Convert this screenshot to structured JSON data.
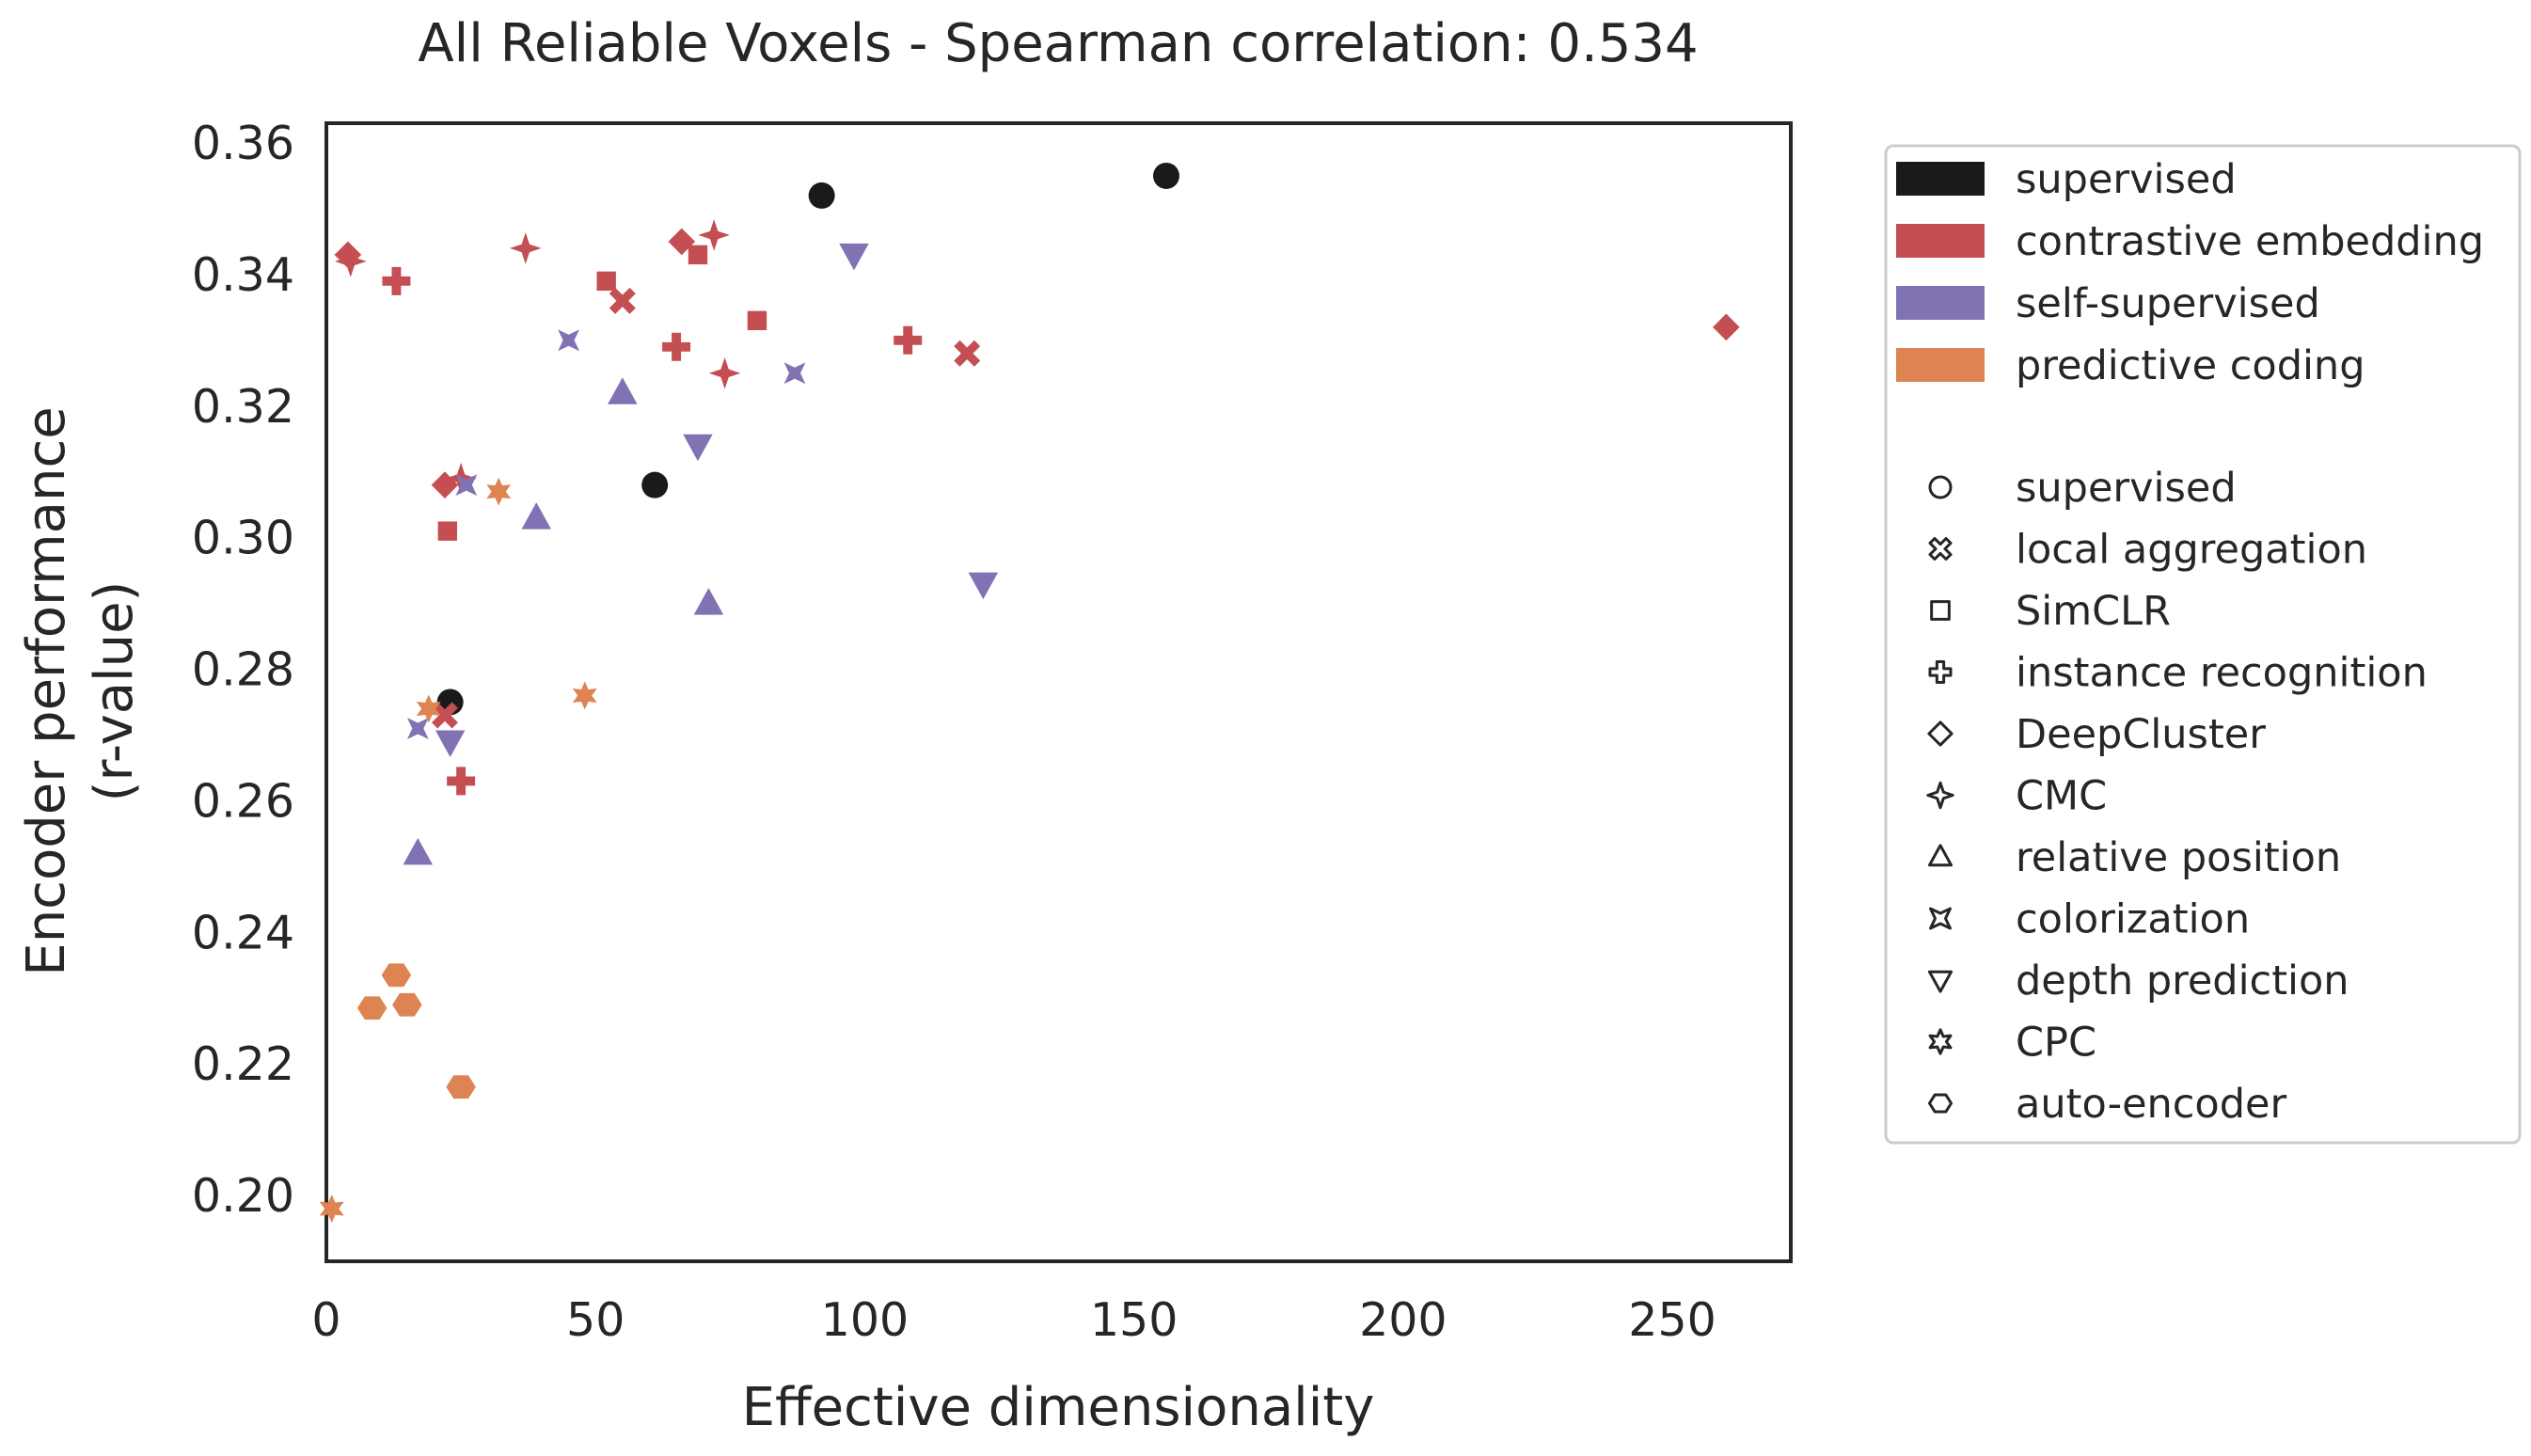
{
  "chart_data": {
    "type": "scatter",
    "title": "All Reliable Voxels - Spearman correlation: 0.534",
    "xlabel": "Effective dimensionality",
    "ylabel_lines": [
      "Encoder performance",
      "(r-value)"
    ],
    "xlim": [
      0,
      272
    ],
    "ylim": [
      0.19,
      0.363
    ],
    "xticks": [
      0,
      50,
      100,
      150,
      200,
      250
    ],
    "xtick_labels": [
      "0",
      "50",
      "100",
      "150",
      "200",
      "250"
    ],
    "yticks": [
      0.2,
      0.22,
      0.24,
      0.26,
      0.28,
      0.3,
      0.32,
      0.34,
      0.36
    ],
    "ytick_labels": [
      "0.20",
      "0.22",
      "0.24",
      "0.26",
      "0.28",
      "0.30",
      "0.32",
      "0.34",
      "0.36"
    ],
    "grid": false,
    "legend_position": "outside-right",
    "categories": [
      {
        "key": "supervised",
        "label": "supervised",
        "color": "#1a1a1a"
      },
      {
        "key": "contrastive",
        "label": "contrastive embedding",
        "color": "#c44e52"
      },
      {
        "key": "self_supervised",
        "label": "self-supervised",
        "color": "#8172b3"
      },
      {
        "key": "predictive",
        "label": "predictive coding",
        "color": "#dd8452"
      }
    ],
    "methods": [
      {
        "key": "supervised",
        "label": "supervised",
        "marker": "circle"
      },
      {
        "key": "local_aggregation",
        "label": "local aggregation",
        "marker": "x"
      },
      {
        "key": "simclr",
        "label": "SimCLR",
        "marker": "square"
      },
      {
        "key": "instance_recognition",
        "label": "instance recognition",
        "marker": "plus"
      },
      {
        "key": "deepcluster",
        "label": "DeepCluster",
        "marker": "diamond"
      },
      {
        "key": "cmc",
        "label": "CMC",
        "marker": "star4"
      },
      {
        "key": "relative_position",
        "label": "relative position",
        "marker": "triangle-up"
      },
      {
        "key": "colorization",
        "label": "colorization",
        "marker": "concave-square"
      },
      {
        "key": "depth_prediction",
        "label": "depth prediction",
        "marker": "triangle-down"
      },
      {
        "key": "cpc",
        "label": "CPC",
        "marker": "star6"
      },
      {
        "key": "auto_encoder",
        "label": "auto-encoder",
        "marker": "hexagon"
      }
    ],
    "points": [
      {
        "x": 156,
        "y": 0.355,
        "category": "supervised",
        "method": "supervised"
      },
      {
        "x": 92,
        "y": 0.352,
        "category": "supervised",
        "method": "supervised"
      },
      {
        "x": 61,
        "y": 0.308,
        "category": "supervised",
        "method": "supervised"
      },
      {
        "x": 23,
        "y": 0.275,
        "category": "supervised",
        "method": "supervised"
      },
      {
        "x": 4,
        "y": 0.343,
        "category": "contrastive",
        "method": "deepcluster"
      },
      {
        "x": 4.5,
        "y": 0.342,
        "category": "contrastive",
        "method": "cmc"
      },
      {
        "x": 13,
        "y": 0.339,
        "category": "contrastive",
        "method": "instance_recognition"
      },
      {
        "x": 37,
        "y": 0.344,
        "category": "contrastive",
        "method": "cmc"
      },
      {
        "x": 66,
        "y": 0.345,
        "category": "contrastive",
        "method": "deepcluster"
      },
      {
        "x": 72,
        "y": 0.346,
        "category": "contrastive",
        "method": "cmc"
      },
      {
        "x": 69,
        "y": 0.343,
        "category": "contrastive",
        "method": "simclr"
      },
      {
        "x": 52,
        "y": 0.339,
        "category": "contrastive",
        "method": "simclr"
      },
      {
        "x": 55,
        "y": 0.336,
        "category": "contrastive",
        "method": "local_aggregation"
      },
      {
        "x": 80,
        "y": 0.333,
        "category": "contrastive",
        "method": "simclr"
      },
      {
        "x": 65,
        "y": 0.329,
        "category": "contrastive",
        "method": "instance_recognition"
      },
      {
        "x": 74,
        "y": 0.325,
        "category": "contrastive",
        "method": "cmc"
      },
      {
        "x": 108,
        "y": 0.33,
        "category": "contrastive",
        "method": "instance_recognition"
      },
      {
        "x": 119,
        "y": 0.328,
        "category": "contrastive",
        "method": "local_aggregation"
      },
      {
        "x": 260,
        "y": 0.332,
        "category": "contrastive",
        "method": "deepcluster"
      },
      {
        "x": 22,
        "y": 0.308,
        "category": "contrastive",
        "method": "deepcluster"
      },
      {
        "x": 25,
        "y": 0.309,
        "category": "contrastive",
        "method": "cmc"
      },
      {
        "x": 22.5,
        "y": 0.301,
        "category": "contrastive",
        "method": "simclr"
      },
      {
        "x": 22,
        "y": 0.273,
        "category": "contrastive",
        "method": "local_aggregation"
      },
      {
        "x": 25,
        "y": 0.263,
        "category": "contrastive",
        "method": "instance_recognition"
      },
      {
        "x": 45,
        "y": 0.33,
        "category": "self_supervised",
        "method": "colorization"
      },
      {
        "x": 87,
        "y": 0.325,
        "category": "self_supervised",
        "method": "colorization"
      },
      {
        "x": 98,
        "y": 0.343,
        "category": "self_supervised",
        "method": "depth_prediction"
      },
      {
        "x": 55,
        "y": 0.322,
        "category": "self_supervised",
        "method": "relative_position"
      },
      {
        "x": 69,
        "y": 0.314,
        "category": "self_supervised",
        "method": "depth_prediction"
      },
      {
        "x": 39,
        "y": 0.303,
        "category": "self_supervised",
        "method": "relative_position"
      },
      {
        "x": 71,
        "y": 0.29,
        "category": "self_supervised",
        "method": "relative_position"
      },
      {
        "x": 122,
        "y": 0.293,
        "category": "self_supervised",
        "method": "depth_prediction"
      },
      {
        "x": 26,
        "y": 0.308,
        "category": "self_supervised",
        "method": "colorization"
      },
      {
        "x": 17,
        "y": 0.271,
        "category": "self_supervised",
        "method": "colorization"
      },
      {
        "x": 23,
        "y": 0.269,
        "category": "self_supervised",
        "method": "depth_prediction"
      },
      {
        "x": 17,
        "y": 0.252,
        "category": "self_supervised",
        "method": "relative_position"
      },
      {
        "x": 32,
        "y": 0.307,
        "category": "predictive",
        "method": "cpc"
      },
      {
        "x": 48,
        "y": 0.276,
        "category": "predictive",
        "method": "cpc"
      },
      {
        "x": 19,
        "y": 0.274,
        "category": "predictive",
        "method": "cpc"
      },
      {
        "x": 1,
        "y": 0.198,
        "category": "predictive",
        "method": "cpc"
      },
      {
        "x": 13,
        "y": 0.2335,
        "category": "predictive",
        "method": "auto_encoder"
      },
      {
        "x": 8.5,
        "y": 0.2285,
        "category": "predictive",
        "method": "auto_encoder"
      },
      {
        "x": 15,
        "y": 0.229,
        "category": "predictive",
        "method": "auto_encoder"
      },
      {
        "x": 25,
        "y": 0.2165,
        "category": "predictive",
        "method": "auto_encoder"
      }
    ]
  }
}
